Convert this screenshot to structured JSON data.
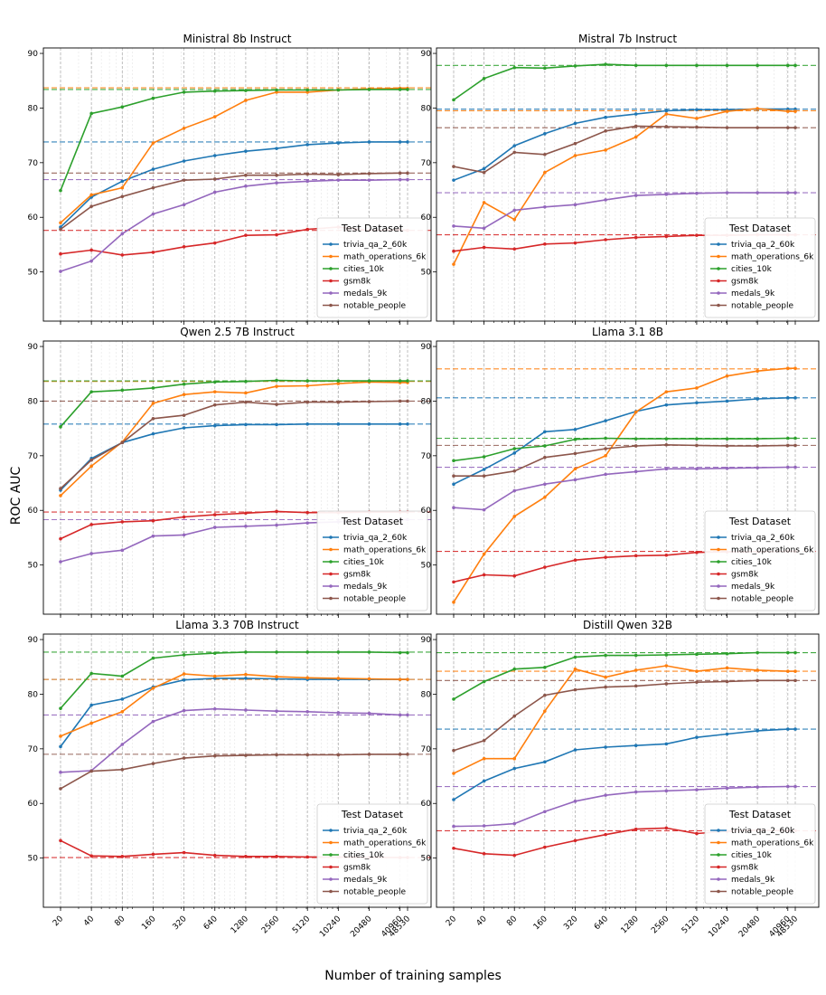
{
  "figure": {
    "ylabel": "ROC AUC",
    "xlabel": "Number of training samples",
    "legend_title": "Test Dataset",
    "x_ticks": [
      "20",
      "40",
      "80",
      "160",
      "320",
      "640",
      "1280",
      "2560",
      "5120",
      "10240",
      "20480",
      "40960",
      "48530"
    ],
    "y_ticks": [
      50,
      60,
      70,
      80,
      90
    ]
  },
  "series_styles": [
    {
      "key": "trivia_qa_2_60k",
      "color": "#1f77b4"
    },
    {
      "key": "math_operations_6k",
      "color": "#ff7f0e"
    },
    {
      "key": "cities_10k",
      "color": "#2ca02c"
    },
    {
      "key": "gsm8k",
      "color": "#d62728"
    },
    {
      "key": "medals_9k",
      "color": "#9467bd"
    },
    {
      "key": "notable_people",
      "color": "#8c564b"
    }
  ],
  "chart_data": [
    {
      "type": "line",
      "title": "Ministral 8b Instruct",
      "x": [
        20,
        40,
        80,
        160,
        320,
        640,
        1280,
        2560,
        5120,
        10240,
        20480,
        40960,
        48530
      ],
      "ylim": [
        41,
        91
      ],
      "x_scale": "log",
      "grid": "vertical",
      "legend_placement": "lower-right",
      "show_xticks": false,
      "series": [
        {
          "name": "trivia_qa_2_60k",
          "values": [
            58.2,
            63.7,
            66.6,
            68.8,
            70.3,
            71.3,
            72.1,
            72.6,
            73.3,
            73.6,
            73.8,
            73.8,
            73.8
          ],
          "reference": 73.8
        },
        {
          "name": "math_operations_6k",
          "values": [
            59.0,
            64.1,
            65.4,
            73.6,
            76.3,
            78.4,
            81.4,
            82.9,
            82.9,
            83.3,
            83.5,
            83.6,
            83.6
          ],
          "reference": 83.7
        },
        {
          "name": "cities_10k",
          "values": [
            64.9,
            79.0,
            80.2,
            81.8,
            82.9,
            83.1,
            83.2,
            83.3,
            83.3,
            83.3,
            83.4,
            83.4,
            83.4
          ],
          "reference": 83.4
        },
        {
          "name": "gsm8k",
          "values": [
            53.3,
            54.0,
            53.1,
            53.6,
            54.6,
            55.3,
            56.7,
            56.8,
            57.8,
            58.2,
            57.6,
            57.7,
            57.6
          ],
          "reference": 57.6
        },
        {
          "name": "medals_9k",
          "values": [
            50.1,
            52.0,
            57.0,
            60.6,
            62.3,
            64.6,
            65.7,
            66.3,
            66.6,
            66.8,
            66.8,
            66.9,
            66.9
          ],
          "reference": 66.9
        },
        {
          "name": "notable_people",
          "values": [
            57.8,
            62.0,
            63.8,
            65.4,
            66.8,
            67.0,
            67.7,
            67.7,
            67.9,
            67.8,
            68.0,
            68.1,
            68.1
          ],
          "reference": 68.1
        }
      ]
    },
    {
      "type": "line",
      "title": "Mistral 7b Instruct",
      "x": [
        20,
        40,
        80,
        160,
        320,
        640,
        1280,
        2560,
        5120,
        10240,
        20480,
        40960,
        48530
      ],
      "ylim": [
        41,
        91
      ],
      "x_scale": "log",
      "grid": "vertical",
      "legend_placement": "lower-right",
      "show_xticks": false,
      "series": [
        {
          "name": "trivia_qa_2_60k",
          "values": [
            66.8,
            68.9,
            73.1,
            75.3,
            77.2,
            78.3,
            78.9,
            79.5,
            79.7,
            79.7,
            79.8,
            79.8,
            79.8
          ],
          "reference": 79.8
        },
        {
          "name": "math_operations_6k",
          "values": [
            51.4,
            62.7,
            59.6,
            68.2,
            71.3,
            72.3,
            74.7,
            78.9,
            78.1,
            79.4,
            79.9,
            79.4,
            79.4
          ],
          "reference": 79.5
        },
        {
          "name": "cities_10k",
          "values": [
            81.5,
            85.4,
            87.4,
            87.3,
            87.7,
            88.0,
            87.8,
            87.8,
            87.8,
            87.8,
            87.8,
            87.8,
            87.8
          ],
          "reference": 87.8
        },
        {
          "name": "gsm8k",
          "values": [
            53.8,
            54.5,
            54.2,
            55.1,
            55.3,
            55.9,
            56.3,
            56.5,
            56.7,
            56.7,
            56.8,
            56.8,
            56.8
          ],
          "reference": 56.8
        },
        {
          "name": "medals_9k",
          "values": [
            58.4,
            58.0,
            61.3,
            61.9,
            62.3,
            63.2,
            64.0,
            64.2,
            64.4,
            64.5,
            64.5,
            64.5,
            64.5
          ],
          "reference": 64.5
        },
        {
          "name": "notable_people",
          "values": [
            69.3,
            68.2,
            71.9,
            71.5,
            73.5,
            75.8,
            76.7,
            76.6,
            76.5,
            76.4,
            76.4,
            76.4,
            76.4
          ],
          "reference": 76.4
        }
      ]
    },
    {
      "type": "line",
      "title": "Qwen 2.5 7B Instruct",
      "x": [
        20,
        40,
        80,
        160,
        320,
        640,
        1280,
        2560,
        5120,
        10240,
        20480,
        40960,
        48530
      ],
      "ylim": [
        41,
        91
      ],
      "x_scale": "log",
      "grid": "vertical",
      "legend_placement": "lower-right",
      "show_xticks": false,
      "series": [
        {
          "name": "trivia_qa_2_60k",
          "values": [
            63.7,
            69.5,
            72.4,
            74.0,
            75.1,
            75.5,
            75.7,
            75.7,
            75.8,
            75.8,
            75.8,
            75.8,
            75.8
          ],
          "reference": 75.8
        },
        {
          "name": "math_operations_6k",
          "values": [
            62.7,
            68.1,
            72.5,
            79.6,
            81.2,
            81.7,
            81.5,
            82.7,
            82.8,
            83.2,
            83.5,
            83.4,
            83.4
          ],
          "reference": 83.6
        },
        {
          "name": "cities_10k",
          "values": [
            75.3,
            81.7,
            82.0,
            82.4,
            83.1,
            83.5,
            83.6,
            83.8,
            83.7,
            83.7,
            83.7,
            83.7,
            83.7
          ],
          "reference": 83.7
        },
        {
          "name": "gsm8k",
          "values": [
            54.8,
            57.4,
            57.9,
            58.1,
            58.8,
            59.2,
            59.5,
            59.8,
            59.6,
            59.6,
            59.7,
            59.7,
            59.7
          ],
          "reference": 59.7
        },
        {
          "name": "medals_9k",
          "values": [
            50.6,
            52.1,
            52.7,
            55.3,
            55.5,
            56.9,
            57.1,
            57.3,
            57.7,
            57.9,
            58.2,
            58.3,
            58.3
          ],
          "reference": 58.3
        },
        {
          "name": "notable_people",
          "values": [
            64.0,
            69.2,
            72.4,
            76.8,
            77.4,
            79.3,
            79.8,
            79.4,
            79.8,
            79.8,
            79.9,
            80.0,
            80.0
          ],
          "reference": 80.0
        }
      ]
    },
    {
      "type": "line",
      "title": "Llama 3.1 8B",
      "x": [
        20,
        40,
        80,
        160,
        320,
        640,
        1280,
        2560,
        5120,
        10240,
        20480,
        40960,
        48530
      ],
      "ylim": [
        41,
        91
      ],
      "x_scale": "log",
      "grid": "vertical",
      "legend_placement": "lower-right",
      "show_xticks": false,
      "series": [
        {
          "name": "trivia_qa_2_60k",
          "values": [
            64.8,
            67.5,
            70.5,
            74.4,
            74.8,
            76.4,
            78.1,
            79.3,
            79.7,
            80.0,
            80.4,
            80.6,
            80.6
          ],
          "reference": 80.6
        },
        {
          "name": "math_operations_6k",
          "values": [
            43.2,
            52.0,
            58.9,
            62.4,
            67.6,
            70.0,
            78.0,
            81.7,
            82.4,
            84.6,
            85.5,
            86.0,
            86.0
          ],
          "reference": 85.9
        },
        {
          "name": "cities_10k",
          "values": [
            69.1,
            69.8,
            71.3,
            71.8,
            73.0,
            73.2,
            73.1,
            73.1,
            73.1,
            73.1,
            73.1,
            73.2,
            73.2
          ],
          "reference": 73.2
        },
        {
          "name": "gsm8k",
          "values": [
            46.9,
            48.2,
            48.0,
            49.6,
            50.9,
            51.4,
            51.7,
            51.8,
            52.3,
            52.4,
            52.4,
            52.5,
            52.5
          ],
          "reference": 52.5
        },
        {
          "name": "medals_9k",
          "values": [
            60.5,
            60.1,
            63.6,
            64.8,
            65.6,
            66.6,
            67.1,
            67.6,
            67.6,
            67.7,
            67.8,
            67.9,
            67.9
          ],
          "reference": 67.9
        },
        {
          "name": "notable_people",
          "values": [
            66.3,
            66.3,
            67.2,
            69.7,
            70.4,
            71.3,
            71.8,
            72.0,
            71.9,
            71.8,
            71.8,
            71.9,
            71.9
          ],
          "reference": 71.9
        }
      ]
    },
    {
      "type": "line",
      "title": "Llama 3.3 70B Instruct",
      "x": [
        20,
        40,
        80,
        160,
        320,
        640,
        1280,
        2560,
        5120,
        10240,
        20480,
        40960,
        48530
      ],
      "ylim": [
        41,
        91
      ],
      "x_scale": "log",
      "grid": "vertical",
      "legend_placement": "lower-right",
      "show_xticks": true,
      "series": [
        {
          "name": "trivia_qa_2_60k",
          "values": [
            70.4,
            78.0,
            79.1,
            81.3,
            82.6,
            82.9,
            82.9,
            82.8,
            82.7,
            82.7,
            82.7,
            82.7,
            82.7
          ],
          "reference": 82.7
        },
        {
          "name": "math_operations_6k",
          "values": [
            72.3,
            74.7,
            76.8,
            81.1,
            83.7,
            83.3,
            83.6,
            83.2,
            83.0,
            82.9,
            82.8,
            82.7,
            82.7
          ],
          "reference": 82.7
        },
        {
          "name": "cities_10k",
          "values": [
            77.4,
            83.8,
            83.3,
            86.6,
            87.2,
            87.5,
            87.7,
            87.7,
            87.7,
            87.7,
            87.7,
            87.6,
            87.6
          ],
          "reference": 87.7
        },
        {
          "name": "gsm8k",
          "values": [
            53.2,
            50.4,
            50.3,
            50.7,
            51.0,
            50.5,
            50.3,
            50.3,
            50.2,
            50.2,
            50.1,
            50.1,
            50.1
          ],
          "reference": 50.1
        },
        {
          "name": "medals_9k",
          "values": [
            65.7,
            66.0,
            70.8,
            75.0,
            77.0,
            77.3,
            77.1,
            76.9,
            76.8,
            76.6,
            76.5,
            76.2,
            76.2
          ],
          "reference": 76.2
        },
        {
          "name": "notable_people",
          "values": [
            62.7,
            65.9,
            66.2,
            67.3,
            68.3,
            68.7,
            68.8,
            68.9,
            68.9,
            68.9,
            69.0,
            69.0,
            69.0
          ],
          "reference": 69.0
        }
      ]
    },
    {
      "type": "line",
      "title": "Distill Qwen 32B",
      "x": [
        20,
        40,
        80,
        160,
        320,
        640,
        1280,
        2560,
        5120,
        10240,
        20480,
        40960,
        48530
      ],
      "ylim": [
        41,
        91
      ],
      "x_scale": "log",
      "grid": "vertical",
      "legend_placement": "lower-right",
      "show_xticks": true,
      "series": [
        {
          "name": "trivia_qa_2_60k",
          "values": [
            60.7,
            64.1,
            66.4,
            67.6,
            69.8,
            70.3,
            70.6,
            70.9,
            72.1,
            72.7,
            73.3,
            73.6,
            73.6
          ],
          "reference": 73.6
        },
        {
          "name": "math_operations_6k",
          "values": [
            65.5,
            68.2,
            68.2,
            76.9,
            84.6,
            83.1,
            84.4,
            85.2,
            84.2,
            84.8,
            84.4,
            84.2,
            84.2
          ],
          "reference": 84.2
        },
        {
          "name": "cities_10k",
          "values": [
            79.1,
            82.3,
            84.6,
            84.9,
            86.8,
            87.1,
            87.1,
            87.2,
            87.3,
            87.4,
            87.6,
            87.6,
            87.6
          ],
          "reference": 87.6
        },
        {
          "name": "gsm8k",
          "values": [
            51.8,
            50.8,
            50.5,
            52.0,
            53.2,
            54.3,
            55.3,
            55.5,
            54.5,
            54.9,
            55.1,
            55.0,
            55.0
          ],
          "reference": 55.0
        },
        {
          "name": "medals_9k",
          "values": [
            55.8,
            55.9,
            56.3,
            58.5,
            60.4,
            61.5,
            62.1,
            62.3,
            62.5,
            62.8,
            63.0,
            63.1,
            63.1
          ],
          "reference": 63.1
        },
        {
          "name": "notable_people",
          "values": [
            69.7,
            71.5,
            76.0,
            79.8,
            80.8,
            81.3,
            81.5,
            81.9,
            82.2,
            82.3,
            82.5,
            82.5,
            82.5
          ],
          "reference": 82.5
        }
      ]
    }
  ]
}
